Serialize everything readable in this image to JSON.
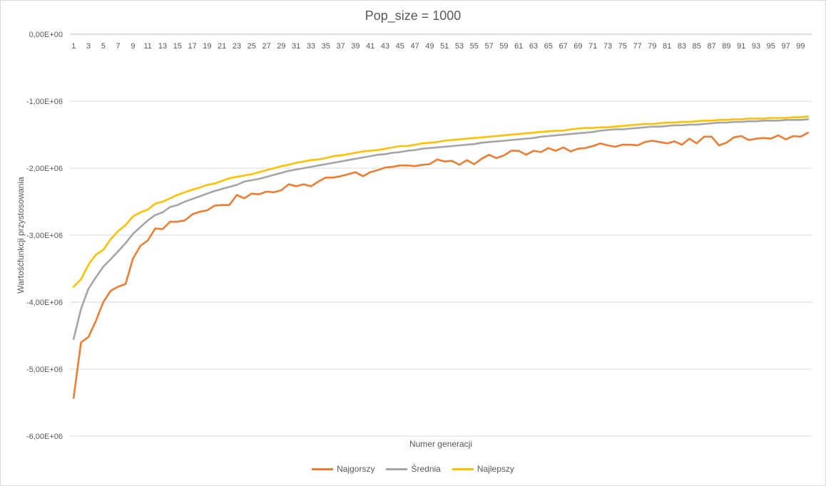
{
  "chart_data": {
    "type": "line",
    "title": "Pop_size = 1000",
    "xlabel": "Numer generacji",
    "ylabel": "Wartośćfunkcji przystosowania",
    "x": [
      1,
      2,
      3,
      4,
      5,
      6,
      7,
      8,
      9,
      10,
      11,
      12,
      13,
      14,
      15,
      16,
      17,
      18,
      19,
      20,
      21,
      22,
      23,
      24,
      25,
      26,
      27,
      28,
      29,
      30,
      31,
      32,
      33,
      34,
      35,
      36,
      37,
      38,
      39,
      40,
      41,
      42,
      43,
      44,
      45,
      46,
      47,
      48,
      49,
      50,
      51,
      52,
      53,
      54,
      55,
      56,
      57,
      58,
      59,
      60,
      61,
      62,
      63,
      64,
      65,
      66,
      67,
      68,
      69,
      70,
      71,
      72,
      73,
      74,
      75,
      76,
      77,
      78,
      79,
      80,
      81,
      82,
      83,
      84,
      85,
      86,
      87,
      88,
      89,
      90,
      91,
      92,
      93,
      94,
      95,
      96,
      97,
      98,
      99,
      100
    ],
    "x_tick_labels": [
      "1",
      "3",
      "5",
      "7",
      "9",
      "11",
      "13",
      "15",
      "17",
      "19",
      "21",
      "23",
      "25",
      "27",
      "29",
      "31",
      "33",
      "35",
      "37",
      "39",
      "41",
      "43",
      "45",
      "47",
      "49",
      "51",
      "53",
      "55",
      "57",
      "59",
      "61",
      "63",
      "65",
      "67",
      "69",
      "71",
      "73",
      "75",
      "77",
      "79",
      "81",
      "83",
      "85",
      "87",
      "89",
      "91",
      "93",
      "95",
      "97",
      "99"
    ],
    "y_tick_labels": [
      "0,00E+00",
      "-1,00E+06",
      "-2,00E+06",
      "-3,00E+06",
      "-4,00E+06",
      "-5,00E+06",
      "-6,00E+06"
    ],
    "ylim": [
      -6000000,
      0
    ],
    "grid": true,
    "x_axis_position": "top",
    "legend_position": "bottom",
    "series": [
      {
        "name": "Najgorszy",
        "color": "#ed7d31",
        "values": [
          -5430000,
          -4600000,
          -4520000,
          -4280000,
          -4000000,
          -3830000,
          -3770000,
          -3730000,
          -3350000,
          -3160000,
          -3080000,
          -2900000,
          -2910000,
          -2800000,
          -2800000,
          -2780000,
          -2690000,
          -2650000,
          -2630000,
          -2560000,
          -2550000,
          -2550000,
          -2400000,
          -2450000,
          -2380000,
          -2390000,
          -2350000,
          -2360000,
          -2330000,
          -2240000,
          -2270000,
          -2240000,
          -2270000,
          -2200000,
          -2140000,
          -2140000,
          -2120000,
          -2090000,
          -2060000,
          -2120000,
          -2060000,
          -2030000,
          -1990000,
          -1980000,
          -1960000,
          -1960000,
          -1970000,
          -1950000,
          -1940000,
          -1870000,
          -1900000,
          -1890000,
          -1950000,
          -1880000,
          -1940000,
          -1860000,
          -1800000,
          -1850000,
          -1810000,
          -1740000,
          -1740000,
          -1800000,
          -1740000,
          -1760000,
          -1700000,
          -1740000,
          -1690000,
          -1750000,
          -1710000,
          -1700000,
          -1670000,
          -1630000,
          -1660000,
          -1680000,
          -1650000,
          -1650000,
          -1660000,
          -1610000,
          -1590000,
          -1610000,
          -1630000,
          -1600000,
          -1650000,
          -1560000,
          -1630000,
          -1530000,
          -1530000,
          -1660000,
          -1620000,
          -1540000,
          -1520000,
          -1580000,
          -1560000,
          -1550000,
          -1560000,
          -1510000,
          -1570000,
          -1520000,
          -1530000,
          -1470000
        ]
      },
      {
        "name": "Średnia",
        "color": "#a5a5a5",
        "values": [
          -4550000,
          -4100000,
          -3800000,
          -3630000,
          -3470000,
          -3360000,
          -3240000,
          -3120000,
          -2980000,
          -2880000,
          -2780000,
          -2700000,
          -2660000,
          -2580000,
          -2550000,
          -2500000,
          -2460000,
          -2420000,
          -2380000,
          -2340000,
          -2310000,
          -2280000,
          -2250000,
          -2200000,
          -2180000,
          -2160000,
          -2130000,
          -2100000,
          -2070000,
          -2040000,
          -2020000,
          -2000000,
          -1980000,
          -1960000,
          -1940000,
          -1920000,
          -1900000,
          -1880000,
          -1860000,
          -1840000,
          -1820000,
          -1800000,
          -1790000,
          -1770000,
          -1760000,
          -1740000,
          -1730000,
          -1710000,
          -1700000,
          -1690000,
          -1680000,
          -1670000,
          -1660000,
          -1650000,
          -1640000,
          -1620000,
          -1610000,
          -1600000,
          -1590000,
          -1580000,
          -1570000,
          -1560000,
          -1550000,
          -1530000,
          -1520000,
          -1510000,
          -1500000,
          -1490000,
          -1480000,
          -1470000,
          -1460000,
          -1440000,
          -1430000,
          -1420000,
          -1420000,
          -1410000,
          -1400000,
          -1390000,
          -1380000,
          -1380000,
          -1370000,
          -1360000,
          -1360000,
          -1350000,
          -1350000,
          -1340000,
          -1330000,
          -1320000,
          -1320000,
          -1310000,
          -1310000,
          -1300000,
          -1300000,
          -1290000,
          -1290000,
          -1290000,
          -1280000,
          -1280000,
          -1280000,
          -1270000
        ]
      },
      {
        "name": "Najlepszy",
        "color": "#ffc000",
        "values": [
          -3770000,
          -3660000,
          -3440000,
          -3290000,
          -3220000,
          -3060000,
          -2940000,
          -2850000,
          -2720000,
          -2660000,
          -2620000,
          -2530000,
          -2500000,
          -2450000,
          -2400000,
          -2360000,
          -2320000,
          -2290000,
          -2250000,
          -2230000,
          -2190000,
          -2150000,
          -2130000,
          -2110000,
          -2090000,
          -2060000,
          -2030000,
          -2000000,
          -1970000,
          -1950000,
          -1920000,
          -1900000,
          -1880000,
          -1870000,
          -1850000,
          -1820000,
          -1810000,
          -1790000,
          -1770000,
          -1750000,
          -1740000,
          -1730000,
          -1710000,
          -1690000,
          -1670000,
          -1670000,
          -1650000,
          -1630000,
          -1620000,
          -1610000,
          -1590000,
          -1580000,
          -1570000,
          -1560000,
          -1550000,
          -1540000,
          -1530000,
          -1520000,
          -1510000,
          -1500000,
          -1490000,
          -1480000,
          -1470000,
          -1460000,
          -1450000,
          -1440000,
          -1440000,
          -1420000,
          -1410000,
          -1400000,
          -1400000,
          -1390000,
          -1390000,
          -1380000,
          -1370000,
          -1360000,
          -1350000,
          -1340000,
          -1340000,
          -1330000,
          -1320000,
          -1320000,
          -1310000,
          -1310000,
          -1300000,
          -1290000,
          -1290000,
          -1280000,
          -1280000,
          -1270000,
          -1270000,
          -1260000,
          -1260000,
          -1260000,
          -1250000,
          -1250000,
          -1250000,
          -1240000,
          -1240000,
          -1230000
        ]
      }
    ]
  }
}
